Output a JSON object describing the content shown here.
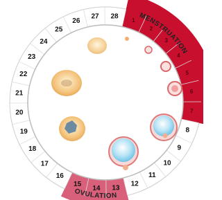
{
  "days": [
    1,
    2,
    3,
    4,
    5,
    6,
    7,
    8,
    9,
    10,
    11,
    12,
    13,
    14,
    15,
    16,
    17,
    18,
    19,
    20,
    21,
    22,
    23,
    24,
    25,
    26,
    27,
    28
  ],
  "menstruation_label": "MENSTRUATION",
  "ovulation_label": "OVULATION"
}
